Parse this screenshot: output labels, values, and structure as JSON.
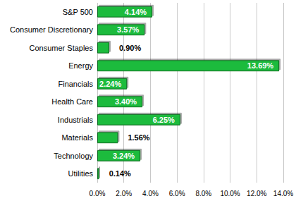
{
  "chart_data": {
    "type": "bar",
    "orientation": "horizontal",
    "categories": [
      "S&P 500",
      "Consumer Discretionary",
      "Consumer Staples",
      "Energy",
      "Financials",
      "Health Care",
      "Industrials",
      "Materials",
      "Technology",
      "Utilities"
    ],
    "values": [
      4.14,
      3.57,
      0.9,
      13.69,
      2.24,
      3.4,
      6.25,
      1.56,
      3.24,
      0.14
    ],
    "value_labels": [
      "4.14%",
      "3.57%",
      "0.90%",
      "13.69%",
      "2.24%",
      "3.40%",
      "6.25%",
      "1.56%",
      "3.24%",
      "0.14%"
    ],
    "color": "#1dbb3c",
    "xlim": [
      0,
      14
    ],
    "xticks": [
      {
        "value": 0,
        "label": "0.0%"
      },
      {
        "value": 2,
        "label": "2.0%"
      },
      {
        "value": 4,
        "label": "4.0%"
      },
      {
        "value": 6,
        "label": "6.0%"
      },
      {
        "value": 8,
        "label": "8.0%"
      },
      {
        "value": 10,
        "label": "10.0%"
      },
      {
        "value": 12,
        "label": "12.0%"
      },
      {
        "value": 14,
        "label": "14.0%"
      }
    ],
    "grid": true,
    "data_labels": true
  }
}
